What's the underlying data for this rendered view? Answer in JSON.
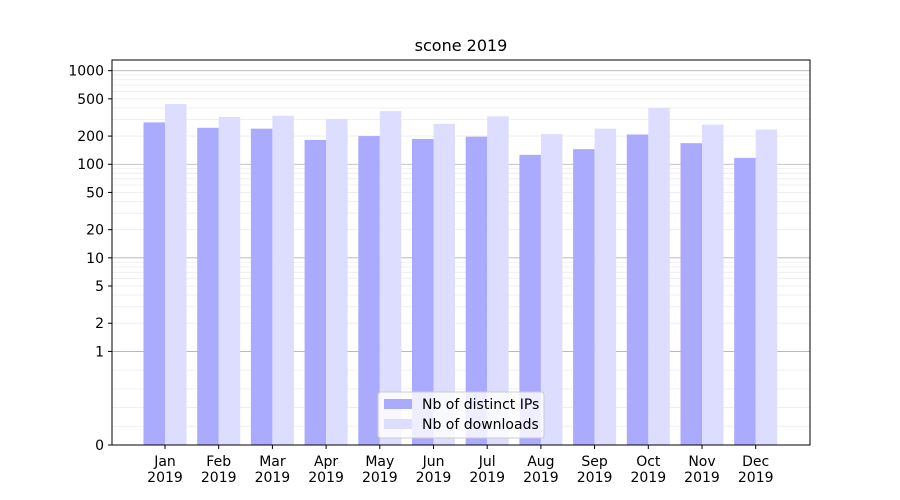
{
  "chart_data": {
    "type": "bar",
    "title": "scone 2019",
    "xlabel": "",
    "ylabel": "",
    "yscale": "symlog",
    "yticks": [
      0,
      1,
      2,
      5,
      10,
      20,
      50,
      100,
      200,
      500,
      1000
    ],
    "ylim": [
      0,
      1300
    ],
    "grid": true,
    "legend_position": "bottom-center",
    "categories": [
      [
        "Jan",
        "2019"
      ],
      [
        "Feb",
        "2019"
      ],
      [
        "Mar",
        "2019"
      ],
      [
        "Apr",
        "2019"
      ],
      [
        "May",
        "2019"
      ],
      [
        "Jun",
        "2019"
      ],
      [
        "Jul",
        "2019"
      ],
      [
        "Aug",
        "2019"
      ],
      [
        "Sep",
        "2019"
      ],
      [
        "Oct",
        "2019"
      ],
      [
        "Nov",
        "2019"
      ],
      [
        "Dec",
        "2019"
      ]
    ],
    "series": [
      {
        "name": "Nb of distinct IPs",
        "color": "#aaaaff",
        "values": [
          280,
          245,
          240,
          182,
          200,
          186,
          197,
          126,
          145,
          208,
          168,
          117
        ]
      },
      {
        "name": "Nb of downloads",
        "color": "#ddddff",
        "values": [
          440,
          320,
          330,
          305,
          370,
          270,
          325,
          210,
          240,
          400,
          265,
          235
        ]
      }
    ]
  }
}
